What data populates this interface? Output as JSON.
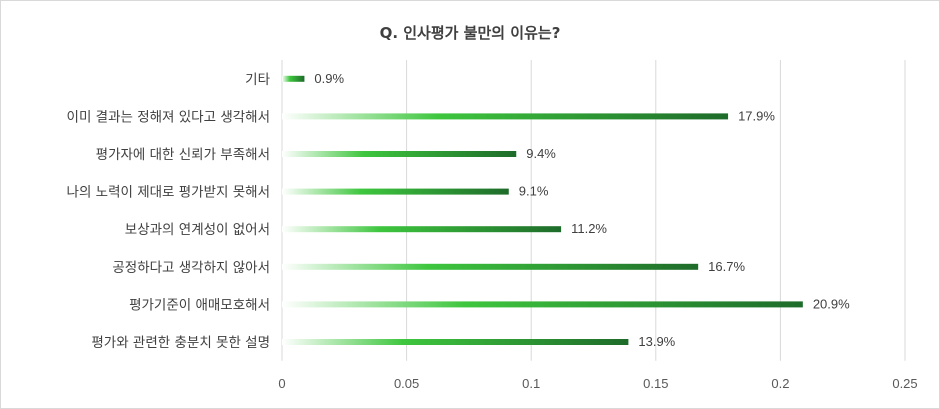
{
  "chart_data": {
    "type": "bar",
    "orientation": "horizontal",
    "title": "Q. 인사평가 불만의 이유는?",
    "categories": [
      "기타",
      "이미 결과는 정해져 있다고 생각해서",
      "평가자에 대한 신뢰가 부족해서",
      "나의 노력이 제대로 평가받지 못해서",
      "보상과의 연계성이 없어서",
      "공정하다고 생각하지 않아서",
      "평가기준이 애매모호해서",
      "평가와 관련한 충분치 못한 설명"
    ],
    "values": [
      0.009,
      0.179,
      0.094,
      0.091,
      0.112,
      0.167,
      0.209,
      0.139
    ],
    "data_labels": [
      "0.9%",
      "17.9%",
      "9.4%",
      "9.1%",
      "11.2%",
      "16.7%",
      "20.9%",
      "13.9%"
    ],
    "x_ticks": [
      "0",
      "0.05",
      "0.1",
      "0.15",
      "0.2",
      "0.25"
    ],
    "xlim": [
      0,
      0.25
    ],
    "grid": true,
    "legend": "none",
    "colors": {
      "bar_start": "#ffffff",
      "bar_mid": "#3ec63e",
      "bar_end": "#1e6b2a",
      "grid": "#d9d9d9"
    }
  }
}
